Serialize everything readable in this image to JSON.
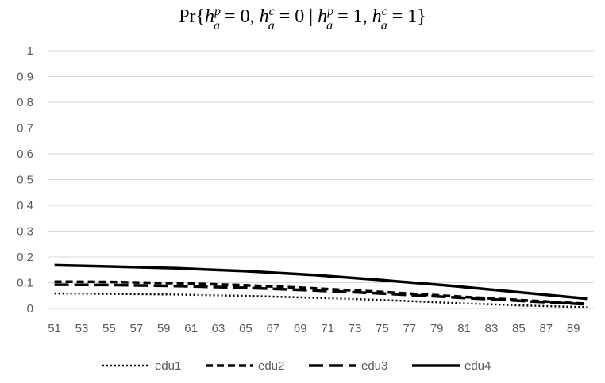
{
  "chart_data": {
    "type": "line",
    "title": {
      "lead": "Pr{",
      "h": "h",
      "sup_p": "p",
      "sup_c": "c",
      "sub_a": "a",
      "zero_eq": " = 0, ",
      "zero_eq2": " = 0",
      "bar": " | ",
      "one_eq": " = 1, ",
      "one_eq2": " = 1",
      "close": "}"
    },
    "xlabel": "",
    "ylabel": "",
    "ylim": [
      0,
      1
    ],
    "y_ticks": [
      "0",
      "0.1",
      "0.2",
      "0.3",
      "0.4",
      "0.5",
      "0.6",
      "0.7",
      "0.8",
      "0.9",
      "1"
    ],
    "x_range": [
      51,
      90
    ],
    "x_tick_labels": [
      "51",
      "53",
      "55",
      "57",
      "59",
      "61",
      "63",
      "65",
      "67",
      "69",
      "71",
      "73",
      "75",
      "77",
      "79",
      "81",
      "83",
      "85",
      "87",
      "89"
    ],
    "grid": "horizontal",
    "legend": "bottom",
    "series": [
      {
        "name": "edu1",
        "dash": "dotted",
        "x": [
          51,
          55,
          60,
          65,
          70,
          75,
          80,
          85,
          90
        ],
        "y": [
          0.058,
          0.057,
          0.054,
          0.049,
          0.042,
          0.033,
          0.022,
          0.012,
          0.005
        ]
      },
      {
        "name": "edu2",
        "dash": "dashed",
        "x": [
          51,
          55,
          60,
          65,
          70,
          75,
          80,
          85,
          90
        ],
        "y": [
          0.104,
          0.103,
          0.098,
          0.09,
          0.078,
          0.064,
          0.048,
          0.033,
          0.018
        ]
      },
      {
        "name": "edu3",
        "dash": "longdash",
        "x": [
          51,
          55,
          60,
          65,
          70,
          75,
          80,
          85,
          90
        ],
        "y": [
          0.092,
          0.091,
          0.087,
          0.08,
          0.07,
          0.058,
          0.044,
          0.03,
          0.016
        ]
      },
      {
        "name": "edu4",
        "dash": "solid",
        "x": [
          51,
          55,
          60,
          65,
          70,
          75,
          80,
          85,
          90
        ],
        "y": [
          0.168,
          0.163,
          0.156,
          0.145,
          0.13,
          0.11,
          0.088,
          0.063,
          0.038
        ]
      }
    ]
  }
}
